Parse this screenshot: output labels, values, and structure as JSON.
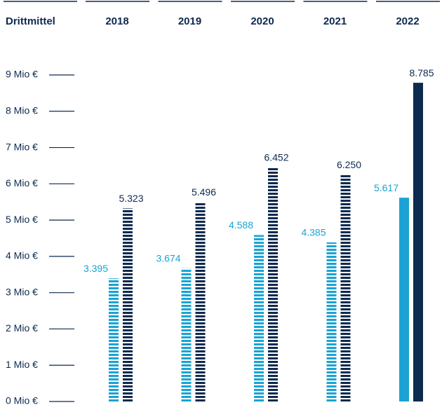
{
  "chart_data": {
    "type": "bar",
    "header_label": "Drittmittel",
    "categories": [
      "2018",
      "2019",
      "2020",
      "2021",
      "2022"
    ],
    "hatched": [
      true,
      true,
      true,
      true,
      false
    ],
    "series": [
      {
        "color": "#1aa3d4",
        "values": [
          3.395,
          3.674,
          4.588,
          4.385,
          5.617
        ],
        "value_labels": [
          "3.395",
          "3.674",
          "4.588",
          "4.385",
          "5.617"
        ]
      },
      {
        "color": "#0d2a4f",
        "values": [
          5.323,
          5.496,
          6.452,
          6.25,
          8.785
        ],
        "value_labels": [
          "5.323",
          "5.496",
          "6.452",
          "6.250",
          "8.785"
        ]
      }
    ],
    "ylim": [
      0,
      9
    ],
    "yticks": [
      {
        "value": 0,
        "label": "0 Mio €"
      },
      {
        "value": 1,
        "label": "1 Mio €"
      },
      {
        "value": 2,
        "label": "2 Mio €"
      },
      {
        "value": 3,
        "label": "3 Mio €"
      },
      {
        "value": 4,
        "label": "4 Mio €"
      },
      {
        "value": 5,
        "label": "5 Mio €"
      },
      {
        "value": 6,
        "label": "6 Mio €"
      },
      {
        "value": 7,
        "label": "7 Mio €"
      },
      {
        "value": 8,
        "label": "8 Mio €"
      },
      {
        "value": 9,
        "label": "9 Mio €"
      }
    ]
  }
}
